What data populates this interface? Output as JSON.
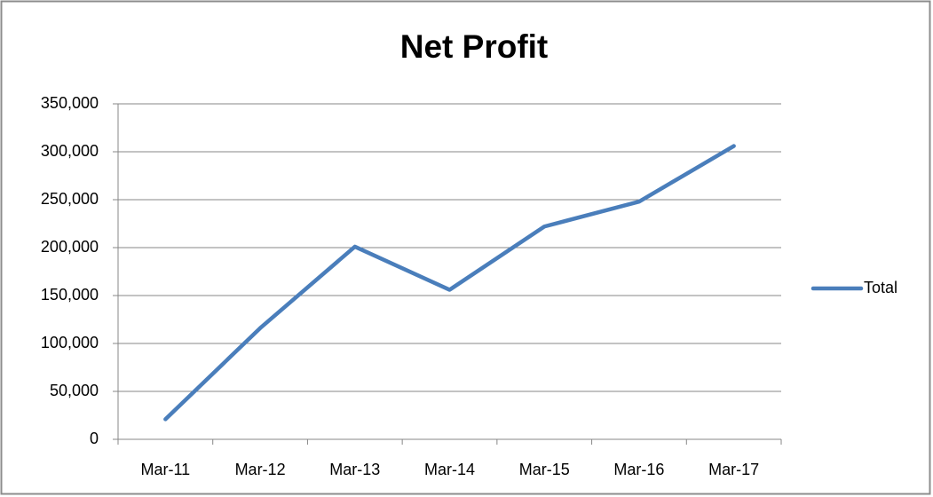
{
  "chart_data": {
    "type": "line",
    "title": "Net Profit",
    "categories": [
      "Mar-11",
      "Mar-12",
      "Mar-13",
      "Mar-14",
      "Mar-15",
      "Mar-16",
      "Mar-17"
    ],
    "series": [
      {
        "name": "Total",
        "color": "#4a7ebb",
        "values": [
          21000,
          116000,
          201000,
          156000,
          222000,
          248000,
          306000
        ]
      }
    ],
    "ylim": [
      0,
      350000
    ],
    "yticks": [
      0,
      {
        "value": 50000,
        "label": "50,000"
      },
      {
        "value": 100000,
        "label": "100,000"
      },
      {
        "value": 150000,
        "label": "150,000"
      },
      {
        "value": 200000,
        "label": "200,000"
      },
      {
        "value": 250000,
        "label": "250,000"
      },
      {
        "value": 300000,
        "label": "300,000"
      },
      {
        "value": 350000,
        "label": "350,000"
      }
    ],
    "grid": true,
    "legend": "right"
  }
}
